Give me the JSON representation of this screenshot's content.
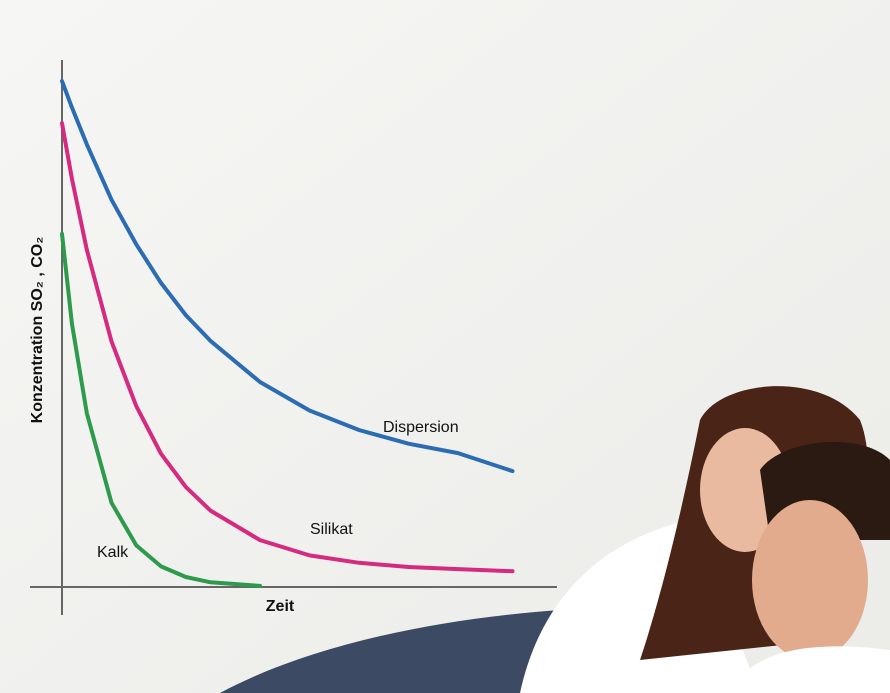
{
  "chart_data": {
    "type": "line",
    "x_label": "Zeit",
    "y_label": "Konzentration SO₂ , CO₂",
    "xlim": [
      0,
      100
    ],
    "ylim": [
      0,
      100
    ],
    "x": [
      0,
      2,
      5,
      10,
      15,
      20,
      25,
      30,
      40,
      50,
      60,
      70,
      80,
      91
    ],
    "series": [
      {
        "name": "Dispersion",
        "color": "#2b6cb3",
        "values": [
          96,
          91,
          84,
          73.5,
          65,
          57.7,
          51.6,
          46.7,
          38.9,
          33.5,
          29.8,
          27.2,
          25.4,
          22
        ]
      },
      {
        "name": "Silikat",
        "color": "#d52a80",
        "values": [
          88,
          77.5,
          64,
          46.6,
          34.3,
          25.3,
          19,
          14.5,
          8.9,
          6,
          4.6,
          3.8,
          3.4,
          3
        ]
      },
      {
        "name": "Kalk",
        "color": "#2e9a4c",
        "values": [
          67,
          50,
          33,
          16,
          7.9,
          3.9,
          1.9,
          0.9,
          0.2,
          null,
          null,
          null,
          null,
          null
        ]
      }
    ]
  }
}
